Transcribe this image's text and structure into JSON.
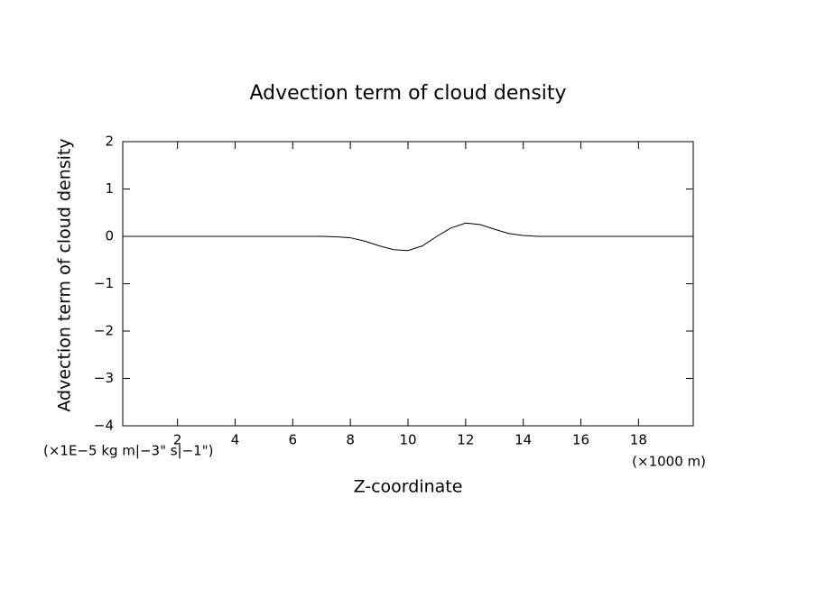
{
  "chart_data": {
    "type": "line",
    "title": "Advection term of cloud density",
    "y_label": "Advection term of cloud density",
    "y_unit": "(×1E−5 kg m|−3\" s|−1\")",
    "x_label": "Z-coordinate",
    "x_unit": "(×1000 m)",
    "x": [
      0.1,
      2,
      4,
      6,
      7,
      7.5,
      8,
      8.5,
      9,
      9.5,
      10,
      10.5,
      11,
      11.5,
      12,
      12.5,
      13,
      13.5,
      14,
      14.5,
      16,
      18,
      19.9
    ],
    "series": [
      {
        "color": "#000000",
        "values": [
          0,
          0,
          0,
          0,
          0,
          -0.01,
          -0.03,
          -0.1,
          -0.2,
          -0.28,
          -0.3,
          -0.2,
          0,
          0.18,
          0.28,
          0.25,
          0.15,
          0.06,
          0.02,
          0,
          0,
          0,
          0
        ]
      }
    ],
    "xlim": [
      0.1,
      19.9
    ],
    "ylim": [
      -4,
      2
    ],
    "xticks": [
      2,
      4,
      6,
      8,
      10,
      12,
      14,
      16,
      18
    ],
    "yticks": [
      {
        "value": -4,
        "label": "−4"
      },
      {
        "value": -3,
        "label": "−3"
      },
      {
        "value": -2,
        "label": "−2"
      },
      {
        "value": -1,
        "label": "−1"
      },
      0,
      1,
      2
    ]
  }
}
